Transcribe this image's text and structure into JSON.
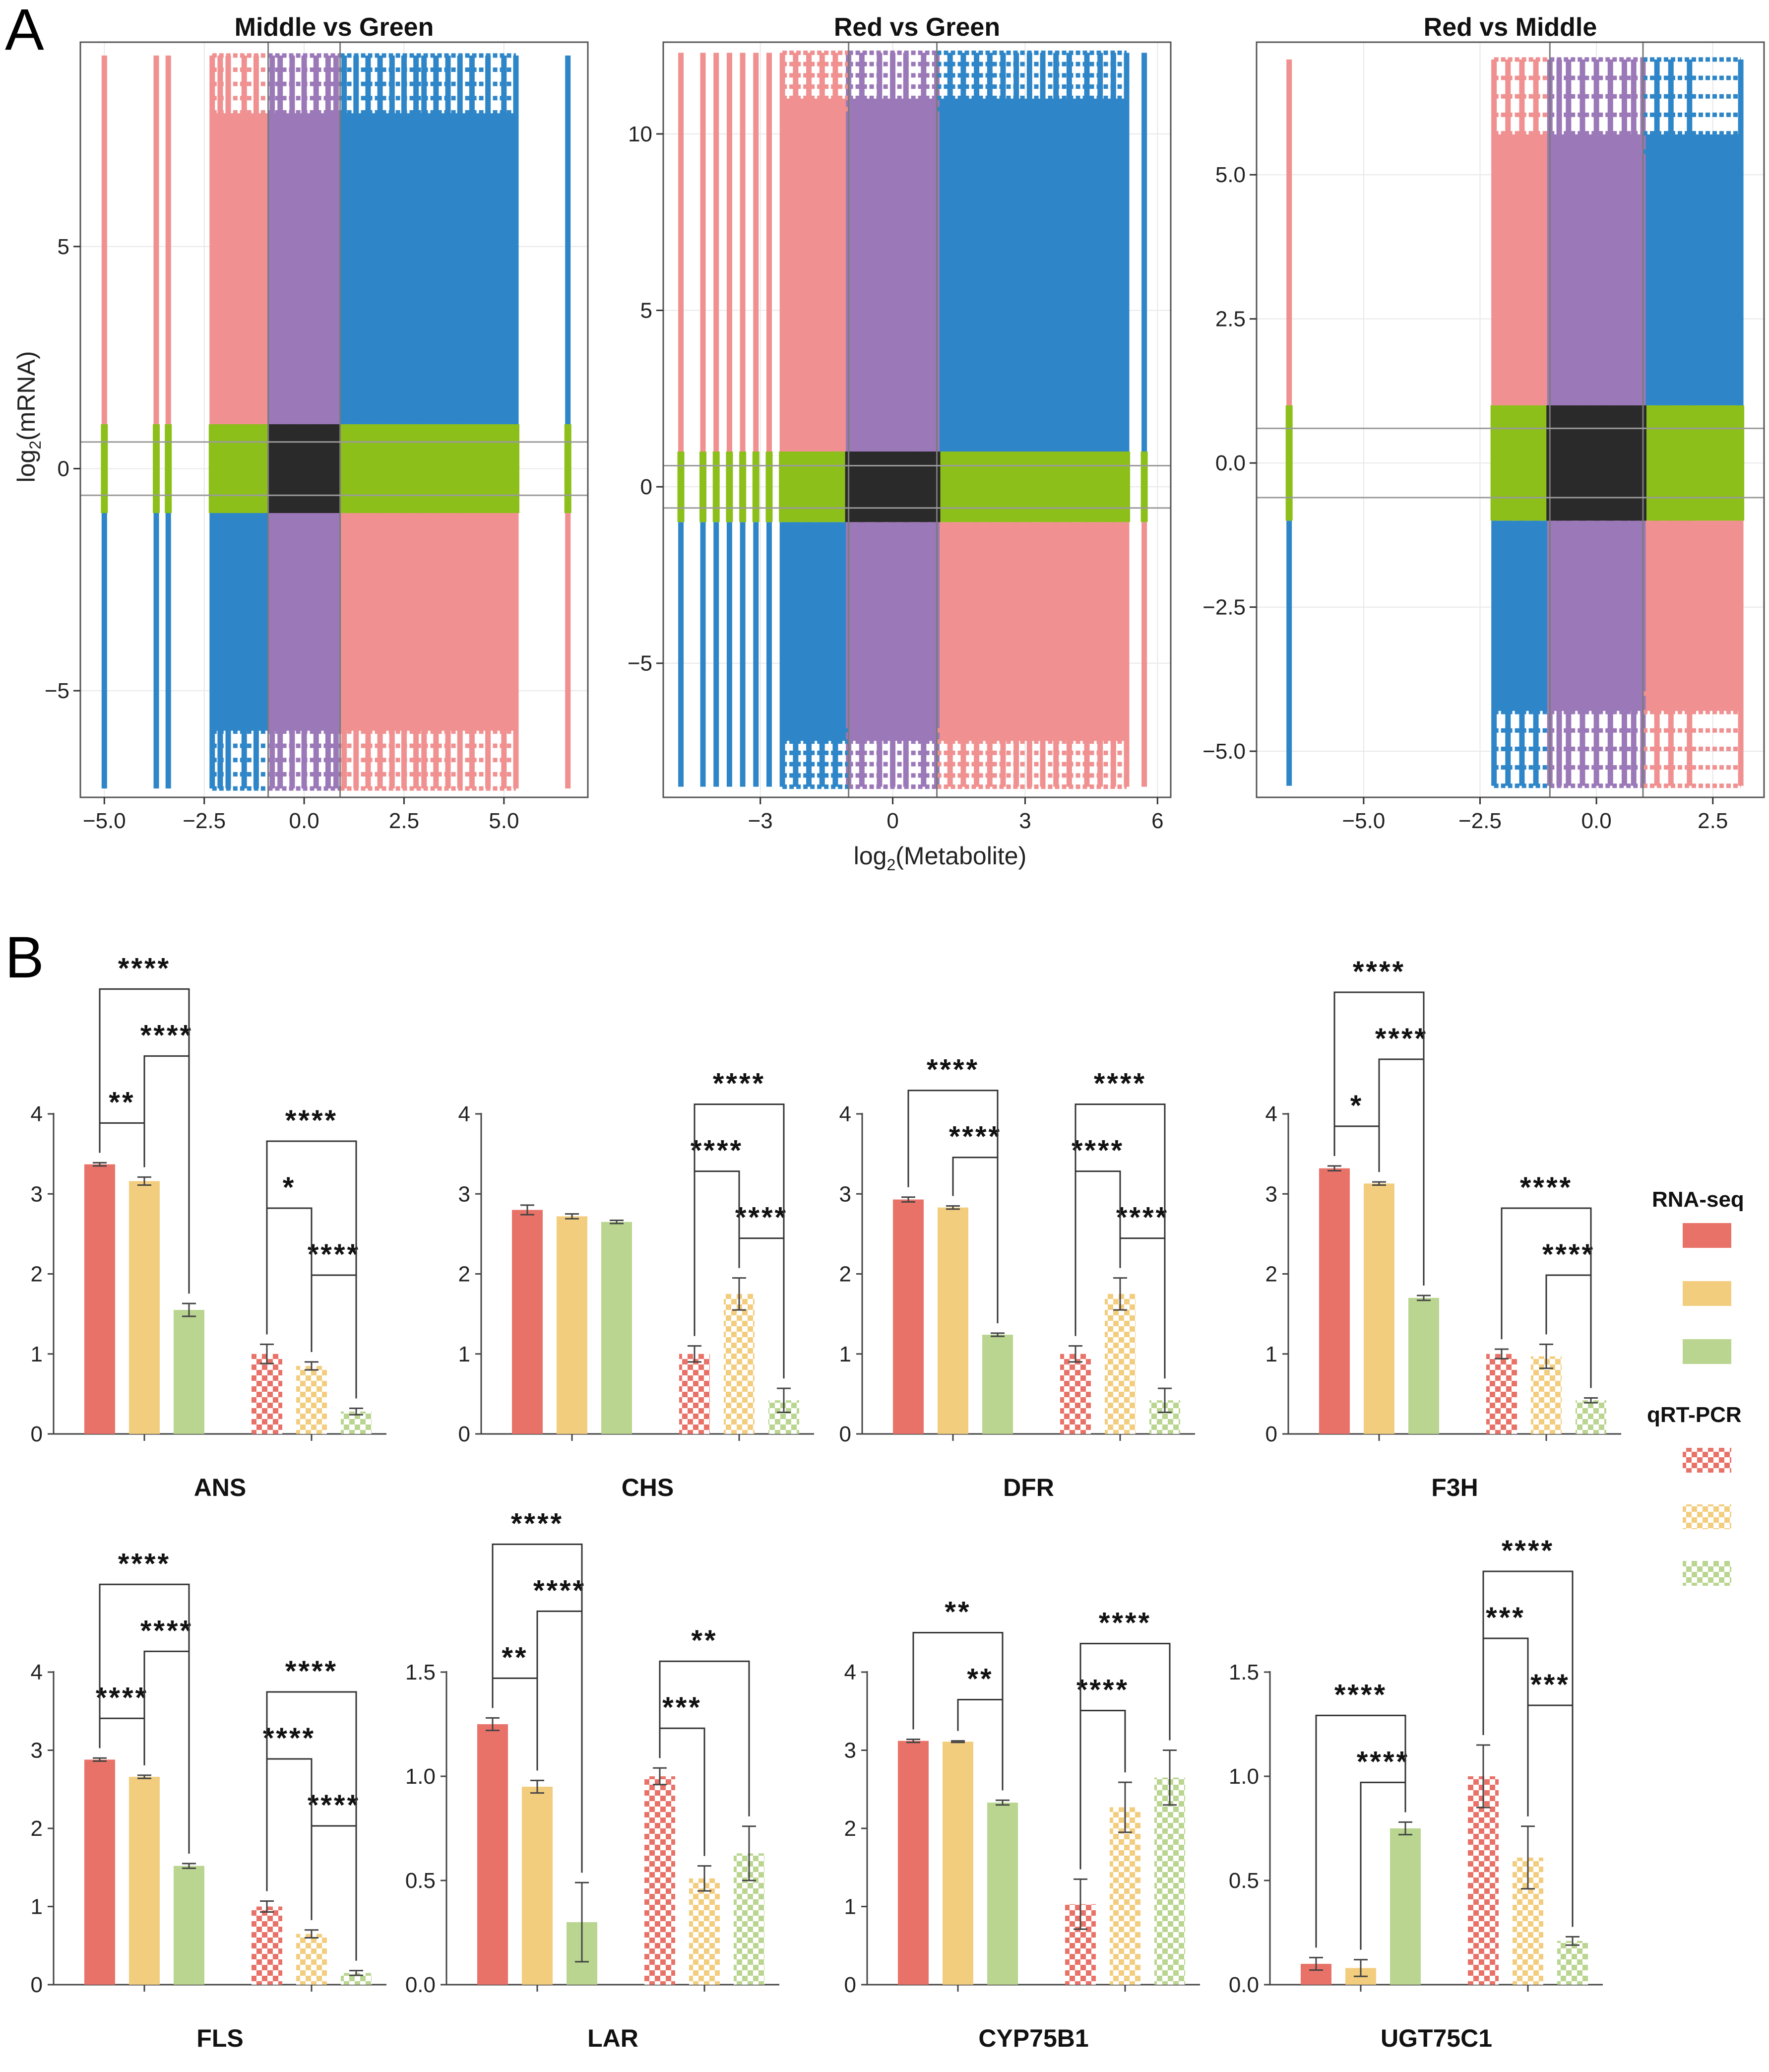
{
  "panel_labels": {
    "a": "A",
    "b": "B"
  },
  "colors": {
    "scatter_pink": "#f09090",
    "scatter_purple": "#9b78b8",
    "scatter_blue": "#2e86c8",
    "scatter_green": "#8cbf1a",
    "scatter_black": "#2a2a2a",
    "bar_red": "#e97268",
    "bar_yellow": "#f3cd7e",
    "bar_green": "#b9d58f"
  },
  "chart_data": [
    {
      "type": "scatter",
      "title": "Middle vs Green",
      "ylabel_base": "log",
      "ylabel_sub": "2",
      "ylabel_rest": "(mRNA)",
      "xlim": [
        -5.6,
        7.1
      ],
      "ylim": [
        -7.4,
        9.6
      ],
      "xticks": [
        -5.0,
        -2.5,
        0.0,
        2.5,
        5.0
      ],
      "xtick_labels": [
        "−5.0",
        "−2.5",
        "0.0",
        "2.5",
        "5.0"
      ],
      "yticks": [
        -5,
        0,
        5
      ],
      "ytick_labels": [
        "−5",
        "0",
        "5"
      ],
      "threshold_x": [
        -0.9,
        0.9
      ],
      "threshold_y": [
        -0.6,
        0.6
      ],
      "mrna_range": [
        -7.2,
        9.3
      ],
      "metabolite_columns": [
        -5.0,
        -3.7,
        -3.4,
        -2.3,
        -2.1,
        -1.9,
        -1.5,
        -1.2,
        -0.8,
        -0.6,
        -0.3,
        0.0,
        0.3,
        0.6,
        0.8,
        1.0,
        1.3,
        1.6,
        1.9,
        2.2,
        2.5,
        2.8,
        3.0,
        3.3,
        3.6,
        3.9,
        4.2,
        4.6,
        5.0,
        5.3,
        6.6
      ]
    },
    {
      "type": "scatter",
      "title": "Red vs Green",
      "xlabel_base": "log",
      "xlabel_sub": "2",
      "xlabel_rest": "(Metabolite)",
      "xlim": [
        -5.2,
        6.3
      ],
      "ylim": [
        -8.8,
        12.6
      ],
      "xticks": [
        -3,
        0,
        3,
        6
      ],
      "xtick_labels": [
        "−3",
        "0",
        "3",
        "6"
      ],
      "yticks": [
        -5,
        0,
        5,
        10
      ],
      "ytick_labels": [
        "−5",
        "0",
        "5",
        "10"
      ],
      "threshold_x": [
        -1.0,
        1.0
      ],
      "threshold_y": [
        -0.6,
        0.6
      ],
      "mrna_range": [
        -8.5,
        12.3
      ],
      "metabolite_columns": [
        -4.8,
        -4.3,
        -4.0,
        -3.7,
        -3.4,
        -3.1,
        -2.8,
        -2.5,
        -2.2,
        -1.9,
        -1.6,
        -1.3,
        -1.0,
        -0.7,
        -0.3,
        0.0,
        0.3,
        0.7,
        1.0,
        1.3,
        1.6,
        1.9,
        2.2,
        2.5,
        2.8,
        3.1,
        3.4,
        3.7,
        4.0,
        4.4,
        4.7,
        5.0,
        5.3,
        5.7
      ]
    },
    {
      "type": "scatter",
      "title": "Red vs Middle",
      "xlim": [
        -7.3,
        3.6
      ],
      "ylim": [
        -5.8,
        7.3
      ],
      "xticks": [
        -5.0,
        -2.5,
        0.0,
        2.5
      ],
      "xtick_labels": [
        "−5.0",
        "−2.5",
        "0.0",
        "2.5"
      ],
      "yticks": [
        -5.0,
        -2.5,
        0.0,
        2.5,
        5.0
      ],
      "ytick_labels": [
        "−5.0",
        "−2.5",
        "0.0",
        "2.5",
        "5.0"
      ],
      "threshold_x": [
        -1.0,
        1.0
      ],
      "threshold_y": [
        -0.6,
        0.6
      ],
      "mrna_range": [
        -5.6,
        7.0
      ],
      "metabolite_columns": [
        -6.6,
        -2.2,
        -1.9,
        -1.6,
        -1.3,
        -1.0,
        -0.8,
        -0.6,
        -0.3,
        0.0,
        0.3,
        0.6,
        0.8,
        1.0,
        1.3,
        1.6,
        2.0,
        3.1
      ]
    },
    {
      "type": "bar",
      "gene": "ANS",
      "yticks": [
        0,
        1,
        2,
        3,
        4
      ],
      "ytick_labels": [
        "0",
        "1",
        "2",
        "3",
        "4"
      ],
      "ymax": 4.1,
      "rnaseq": [
        {
          "v": 3.37,
          "e": 0.02
        },
        {
          "v": 3.16,
          "e": 0.05
        },
        {
          "v": 1.55,
          "e": 0.08
        }
      ],
      "qpcr": [
        {
          "v": 1.0,
          "e": 0.12
        },
        {
          "v": 0.85,
          "e": 0.05
        },
        {
          "v": 0.28,
          "e": 0.04
        }
      ],
      "sig": [
        {
          "a": 0,
          "b": 1,
          "label": "**",
          "level": 0
        },
        {
          "a": 1,
          "b": 2,
          "label": "****",
          "level": 1
        },
        {
          "a": 0,
          "b": 2,
          "label": "****",
          "level": 2
        },
        {
          "a": 4,
          "b": 5,
          "label": "****",
          "level": 0
        },
        {
          "a": 3,
          "b": 4,
          "label": "*",
          "level": 1
        },
        {
          "a": 3,
          "b": 5,
          "label": "****",
          "level": 2
        }
      ]
    },
    {
      "type": "bar",
      "gene": "CHS",
      "yticks": [
        0,
        1,
        2,
        3,
        4
      ],
      "ytick_labels": [
        "0",
        "1",
        "2",
        "3",
        "4"
      ],
      "ymax": 4.1,
      "rnaseq": [
        {
          "v": 2.8,
          "e": 0.06
        },
        {
          "v": 2.72,
          "e": 0.03
        },
        {
          "v": 2.65,
          "e": 0.02
        }
      ],
      "qpcr": [
        {
          "v": 1.0,
          "e": 0.1
        },
        {
          "v": 1.75,
          "e": 0.2
        },
        {
          "v": 0.42,
          "e": 0.15
        }
      ],
      "sig": [
        {
          "a": 4,
          "b": 5,
          "label": "****",
          "level": 0
        },
        {
          "a": 3,
          "b": 4,
          "label": "****",
          "level": 1
        },
        {
          "a": 3,
          "b": 5,
          "label": "****",
          "level": 2
        }
      ]
    },
    {
      "type": "bar",
      "gene": "DFR",
      "yticks": [
        0,
        1,
        2,
        3,
        4
      ],
      "ytick_labels": [
        "0",
        "1",
        "2",
        "3",
        "4"
      ],
      "ymax": 4.1,
      "rnaseq": [
        {
          "v": 2.93,
          "e": 0.03
        },
        {
          "v": 2.83,
          "e": 0.02
        },
        {
          "v": 1.24,
          "e": 0.02
        }
      ],
      "qpcr": [
        {
          "v": 1.0,
          "e": 0.1
        },
        {
          "v": 1.75,
          "e": 0.2
        },
        {
          "v": 0.42,
          "e": 0.15
        }
      ],
      "sig": [
        {
          "a": 1,
          "b": 2,
          "label": "****",
          "level": 0
        },
        {
          "a": 0,
          "b": 2,
          "label": "****",
          "level": 1
        },
        {
          "a": 4,
          "b": 5,
          "label": "****",
          "level": 0
        },
        {
          "a": 3,
          "b": 4,
          "label": "****",
          "level": 1
        },
        {
          "a": 3,
          "b": 5,
          "label": "****",
          "level": 2
        }
      ]
    },
    {
      "type": "bar",
      "gene": "F3H",
      "yticks": [
        0,
        1,
        2,
        3,
        4
      ],
      "ytick_labels": [
        "0",
        "1",
        "2",
        "3",
        "4"
      ],
      "ymax": 4.1,
      "rnaseq": [
        {
          "v": 3.32,
          "e": 0.03
        },
        {
          "v": 3.13,
          "e": 0.02
        },
        {
          "v": 1.7,
          "e": 0.03
        }
      ],
      "qpcr": [
        {
          "v": 1.0,
          "e": 0.06
        },
        {
          "v": 0.97,
          "e": 0.15
        },
        {
          "v": 0.42,
          "e": 0.03
        }
      ],
      "sig": [
        {
          "a": 0,
          "b": 1,
          "label": "*",
          "level": 0
        },
        {
          "a": 1,
          "b": 2,
          "label": "****",
          "level": 1
        },
        {
          "a": 0,
          "b": 2,
          "label": "****",
          "level": 2
        },
        {
          "a": 4,
          "b": 5,
          "label": "****",
          "level": 0
        },
        {
          "a": 3,
          "b": 5,
          "label": "****",
          "level": 1
        }
      ]
    },
    {
      "type": "bar",
      "gene": "FLS",
      "yticks": [
        0,
        1,
        2,
        3,
        4
      ],
      "ytick_labels": [
        "0",
        "1",
        "2",
        "3",
        "4"
      ],
      "ymax": 4.1,
      "rnaseq": [
        {
          "v": 2.88,
          "e": 0.02
        },
        {
          "v": 2.66,
          "e": 0.02
        },
        {
          "v": 1.52,
          "e": 0.03
        }
      ],
      "qpcr": [
        {
          "v": 1.0,
          "e": 0.07
        },
        {
          "v": 0.65,
          "e": 0.05
        },
        {
          "v": 0.15,
          "e": 0.03
        }
      ],
      "sig": [
        {
          "a": 0,
          "b": 1,
          "label": "****",
          "level": 0
        },
        {
          "a": 1,
          "b": 2,
          "label": "****",
          "level": 1
        },
        {
          "a": 0,
          "b": 2,
          "label": "****",
          "level": 2
        },
        {
          "a": 4,
          "b": 5,
          "label": "****",
          "level": 0
        },
        {
          "a": 3,
          "b": 4,
          "label": "****",
          "level": 1
        },
        {
          "a": 3,
          "b": 5,
          "label": "****",
          "level": 2
        }
      ]
    },
    {
      "type": "bar",
      "gene": "LAR",
      "yticks": [
        0,
        0.5,
        1,
        1.5
      ],
      "ytick_labels": [
        "0.0",
        "0.5",
        "1.0",
        "1.5"
      ],
      "ymax": 1.55,
      "rnaseq": [
        {
          "v": 1.25,
          "e": 0.03
        },
        {
          "v": 0.95,
          "e": 0.03
        },
        {
          "v": 0.3,
          "e": 0.19
        }
      ],
      "qpcr": [
        {
          "v": 1.0,
          "e": 0.04
        },
        {
          "v": 0.51,
          "e": 0.06
        },
        {
          "v": 0.63,
          "e": 0.13
        }
      ],
      "sig": [
        {
          "a": 0,
          "b": 1,
          "label": "**",
          "level": 0
        },
        {
          "a": 1,
          "b": 2,
          "label": "****",
          "level": 1
        },
        {
          "a": 0,
          "b": 2,
          "label": "****",
          "level": 2
        },
        {
          "a": 3,
          "b": 4,
          "label": "***",
          "level": 0
        },
        {
          "a": 3,
          "b": 5,
          "label": "**",
          "level": 1
        }
      ]
    },
    {
      "type": "bar",
      "gene": "CYP75B1",
      "yticks": [
        0,
        1,
        2,
        3,
        4
      ],
      "ytick_labels": [
        "0",
        "1",
        "2",
        "3",
        "4"
      ],
      "ymax": 4.1,
      "rnaseq": [
        {
          "v": 3.12,
          "e": 0.02
        },
        {
          "v": 3.11,
          "e": 0.01
        },
        {
          "v": 2.33,
          "e": 0.03
        }
      ],
      "qpcr": [
        {
          "v": 1.03,
          "e": 0.32
        },
        {
          "v": 2.27,
          "e": 0.32
        },
        {
          "v": 2.65,
          "e": 0.35
        }
      ],
      "sig": [
        {
          "a": 1,
          "b": 2,
          "label": "**",
          "level": 0
        },
        {
          "a": 0,
          "b": 2,
          "label": "**",
          "level": 1
        },
        {
          "a": 3,
          "b": 4,
          "label": "****",
          "level": 0
        },
        {
          "a": 3,
          "b": 5,
          "label": "****",
          "level": 1
        }
      ]
    },
    {
      "type": "bar",
      "gene": "UGT75C1",
      "yticks": [
        0,
        0.5,
        1,
        1.5
      ],
      "ytick_labels": [
        "0.0",
        "0.5",
        "1.0",
        "1.5"
      ],
      "ymax": 1.55,
      "rnaseq": [
        {
          "v": 0.1,
          "e": 0.03
        },
        {
          "v": 0.08,
          "e": 0.04
        },
        {
          "v": 0.75,
          "e": 0.03
        }
      ],
      "qpcr": [
        {
          "v": 1.0,
          "e": 0.15
        },
        {
          "v": 0.61,
          "e": 0.15
        },
        {
          "v": 0.21,
          "e": 0.02
        }
      ],
      "sig": [
        {
          "a": 1,
          "b": 2,
          "label": "****",
          "level": 0
        },
        {
          "a": 0,
          "b": 2,
          "label": "****",
          "level": 1
        },
        {
          "a": 4,
          "b": 5,
          "label": "***",
          "level": 0
        },
        {
          "a": 3,
          "b": 4,
          "label": "***",
          "level": 1
        },
        {
          "a": 3,
          "b": 5,
          "label": "****",
          "level": 2
        }
      ]
    }
  ],
  "legend": {
    "rnaseq": "RNA-seq",
    "qpcr": "qRT-PCR"
  }
}
